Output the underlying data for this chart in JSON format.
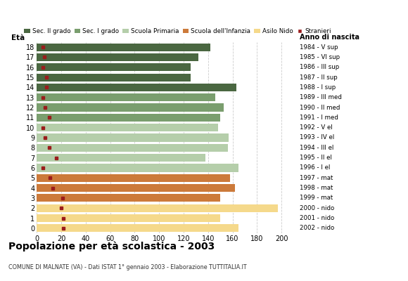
{
  "ages": [
    18,
    17,
    16,
    15,
    14,
    13,
    12,
    11,
    10,
    9,
    8,
    7,
    6,
    5,
    4,
    3,
    2,
    1,
    0
  ],
  "bar_values": [
    142,
    132,
    126,
    126,
    163,
    146,
    153,
    150,
    148,
    157,
    156,
    138,
    165,
    158,
    162,
    150,
    197,
    150,
    165
  ],
  "stranieri_values": [
    5,
    6,
    5,
    8,
    8,
    5,
    7,
    10,
    5,
    7,
    10,
    16,
    5,
    11,
    13,
    21,
    20,
    22,
    22
  ],
  "bar_colors": [
    "#4a6741",
    "#4a6741",
    "#4a6741",
    "#4a6741",
    "#4a6741",
    "#7a9e6e",
    "#7a9e6e",
    "#7a9e6e",
    "#b5ceaa",
    "#b5ceaa",
    "#b5ceaa",
    "#b5ceaa",
    "#b5ceaa",
    "#cc7a3a",
    "#cc7a3a",
    "#cc7a3a",
    "#f5d98b",
    "#f5d98b",
    "#f5d98b"
  ],
  "right_labels": [
    "1984 - V sup",
    "1985 - VI sup",
    "1986 - III sup",
    "1987 - II sup",
    "1988 - I sup",
    "1989 - III med",
    "1990 - II med",
    "1991 - I med",
    "1992 - V el",
    "1993 - IV el",
    "1994 - III el",
    "1995 - II el",
    "1996 - I el",
    "1997 - mat",
    "1998 - mat",
    "1999 - mat",
    "2000 - nido",
    "2001 - nido",
    "2002 - nido"
  ],
  "legend_labels": [
    "Sec. II grado",
    "Sec. I grado",
    "Scuola Primaria",
    "Scuola dell'Infanzia",
    "Asilo Nido",
    "Stranieri"
  ],
  "legend_colors": [
    "#4a6741",
    "#7a9e6e",
    "#b5ceaa",
    "#cc7a3a",
    "#f5d98b",
    "#9b1c1c"
  ],
  "stranieri_color": "#9b1c1c",
  "title": "Popolazione per età scolastica - 2003",
  "subtitle": "COMUNE DI MALNATE (VA) - Dati ISTAT 1° gennaio 2003 - Elaborazione TUTTITALIA.IT",
  "xlabel_left": "Età",
  "xlabel_right": "Anno di nascita",
  "xlim": [
    0,
    210
  ],
  "xticks": [
    0,
    20,
    40,
    60,
    80,
    100,
    120,
    140,
    160,
    180,
    200
  ],
  "background_color": "#ffffff",
  "grid_color": "#cccccc"
}
